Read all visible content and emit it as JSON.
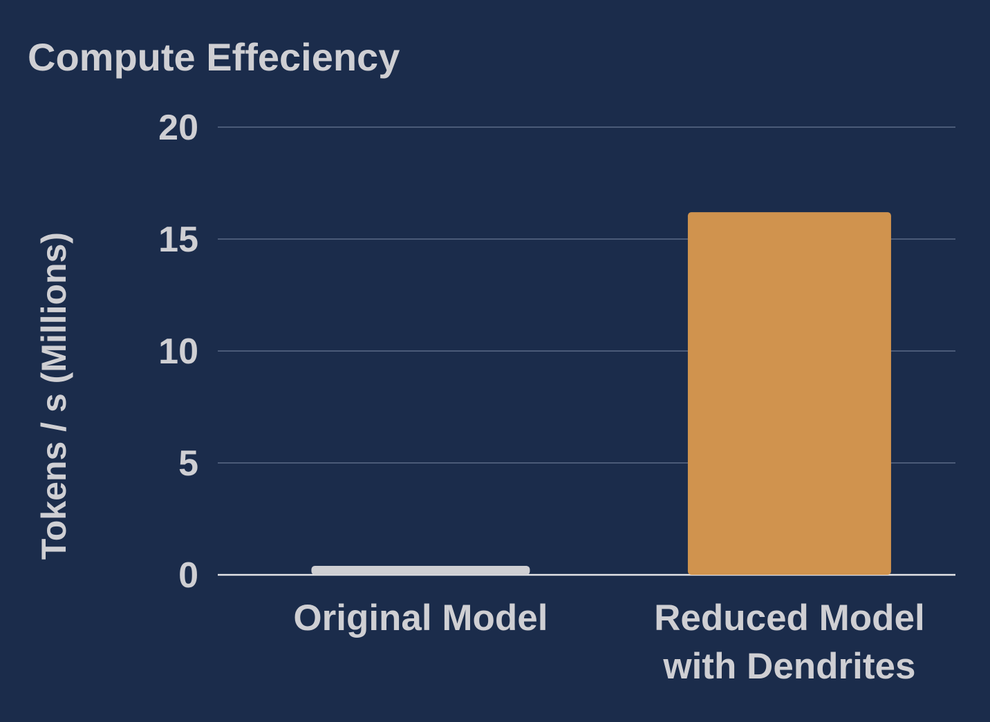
{
  "chart_data": {
    "type": "bar",
    "title": "Compute Effeciency",
    "ylabel": "Tokens / s (Millions)",
    "xlabel": "",
    "ylim": [
      0,
      20
    ],
    "yticks": [
      0,
      5,
      10,
      15,
      20
    ],
    "categories": [
      [
        "Original Model"
      ],
      [
        "Reduced Model",
        "with Dendrites"
      ]
    ],
    "values": [
      0.4,
      16.2
    ],
    "bar_colors": [
      "#cfcfd3",
      "#d0934e"
    ],
    "grid": true,
    "legend": "none"
  },
  "colors": {
    "background": "#1b2c4b",
    "text": "#cfcfd3",
    "grid": "#4b5b78",
    "baseline": "#e4e4e8"
  }
}
